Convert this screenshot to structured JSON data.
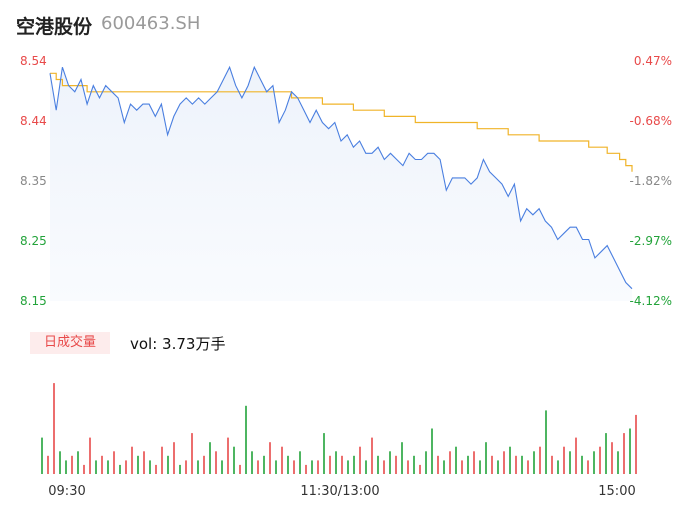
{
  "header": {
    "name": "空港股份",
    "code": "600463.SH"
  },
  "volume_badge": "日成交量",
  "volume_text": "vol: 3.73万手",
  "colors": {
    "up": "#e84a4a",
    "down": "#23a33a",
    "neutral": "#888888",
    "price_line": "#4a7fe0",
    "avg_line": "#f0b429"
  },
  "chart_data": [
    {
      "type": "line",
      "y_left_ticks": [
        "8.54",
        "8.44",
        "8.35",
        "8.25",
        "8.15"
      ],
      "y_right_ticks": [
        "0.47%",
        "-0.68%",
        "-1.82%",
        "-2.97%",
        "-4.12%"
      ],
      "ylim": [
        8.15,
        8.54
      ],
      "x_ticks": [
        "09:30",
        "11:30/13:00",
        "15:00"
      ],
      "series": [
        {
          "values": [
            8.52,
            8.46,
            8.53,
            8.5,
            8.49,
            8.51,
            8.47,
            8.5,
            8.48,
            8.5,
            8.49,
            8.48,
            8.44,
            8.47,
            8.46,
            8.47,
            8.47,
            8.45,
            8.47,
            8.42,
            8.45,
            8.47,
            8.48,
            8.47,
            8.48,
            8.47,
            8.48,
            8.49,
            8.51,
            8.53,
            8.5,
            8.48,
            8.5,
            8.53,
            8.51,
            8.49,
            8.5,
            8.44,
            8.46,
            8.49,
            8.48,
            8.46,
            8.44,
            8.46,
            8.44,
            8.43,
            8.44,
            8.41,
            8.42,
            8.4,
            8.41,
            8.39,
            8.39,
            8.4,
            8.38,
            8.39,
            8.38,
            8.37,
            8.39,
            8.38,
            8.38,
            8.39,
            8.39,
            8.38,
            8.33,
            8.35,
            8.35,
            8.35,
            8.34,
            8.35,
            8.38,
            8.36,
            8.35,
            8.34,
            8.32,
            8.34,
            8.28,
            8.3,
            8.29,
            8.3,
            8.28,
            8.27,
            8.25,
            8.26,
            8.27,
            8.27,
            8.25,
            8.25,
            8.22,
            8.23,
            8.24,
            8.22,
            8.2,
            8.18,
            8.17
          ]
        },
        {
          "values": [
            8.52,
            8.51,
            8.5,
            8.5,
            8.5,
            8.5,
            8.49,
            8.49,
            8.49,
            8.49,
            8.49,
            8.49,
            8.49,
            8.49,
            8.49,
            8.49,
            8.49,
            8.49,
            8.49,
            8.49,
            8.49,
            8.49,
            8.49,
            8.49,
            8.49,
            8.49,
            8.49,
            8.49,
            8.49,
            8.49,
            8.49,
            8.49,
            8.49,
            8.49,
            8.49,
            8.49,
            8.49,
            8.49,
            8.49,
            8.48,
            8.48,
            8.48,
            8.48,
            8.48,
            8.47,
            8.47,
            8.47,
            8.47,
            8.47,
            8.46,
            8.46,
            8.46,
            8.46,
            8.46,
            8.45,
            8.45,
            8.45,
            8.45,
            8.45,
            8.44,
            8.44,
            8.44,
            8.44,
            8.44,
            8.44,
            8.44,
            8.44,
            8.44,
            8.44,
            8.43,
            8.43,
            8.43,
            8.43,
            8.43,
            8.42,
            8.42,
            8.42,
            8.42,
            8.42,
            8.41,
            8.41,
            8.41,
            8.41,
            8.41,
            8.41,
            8.41,
            8.41,
            8.4,
            8.4,
            8.4,
            8.39,
            8.39,
            8.38,
            8.37,
            8.36
          ]
        }
      ]
    },
    {
      "type": "bar",
      "values": [
        8,
        4,
        20,
        5,
        3,
        4,
        5,
        2,
        8,
        3,
        4,
        3,
        5,
        2,
        3,
        6,
        4,
        5,
        3,
        2,
        6,
        4,
        7,
        2,
        3,
        9,
        3,
        4,
        7,
        5,
        3,
        8,
        6,
        2,
        15,
        5,
        3,
        4,
        7,
        3,
        6,
        4,
        3,
        5,
        2,
        3,
        3,
        9,
        4,
        5,
        4,
        3,
        4,
        6,
        3,
        8,
        4,
        3,
        5,
        4,
        7,
        3,
        4,
        2,
        5,
        10,
        4,
        3,
        5,
        6,
        3,
        4,
        5,
        3,
        7,
        4,
        3,
        5,
        6,
        4,
        4,
        3,
        5,
        6,
        14,
        4,
        3,
        6,
        5,
        8,
        4,
        3,
        5,
        6,
        9,
        7,
        5,
        9,
        10,
        13
      ],
      "directions": [
        "d",
        "u",
        "u",
        "d",
        "d",
        "u",
        "d",
        "u",
        "u",
        "d",
        "u",
        "d",
        "u",
        "d",
        "u",
        "u",
        "d",
        "u",
        "d",
        "u",
        "u",
        "d",
        "u",
        "d",
        "u",
        "u",
        "d",
        "u",
        "d",
        "u",
        "d",
        "u",
        "d",
        "u",
        "d",
        "d",
        "u",
        "d",
        "u",
        "d",
        "u",
        "d",
        "u",
        "d",
        "u",
        "d",
        "u",
        "d",
        "u",
        "d",
        "u",
        "d",
        "d",
        "u",
        "d",
        "u",
        "d",
        "u",
        "d",
        "u",
        "d",
        "u",
        "d",
        "u",
        "d",
        "d",
        "u",
        "d",
        "u",
        "d",
        "u",
        "d",
        "u",
        "d",
        "d",
        "u",
        "d",
        "u",
        "d",
        "u",
        "d",
        "u",
        "d",
        "u",
        "d",
        "u",
        "d",
        "u",
        "d",
        "u",
        "d",
        "u",
        "d",
        "u",
        "d",
        "u",
        "d",
        "u",
        "d",
        "u"
      ],
      "ylim": [
        0,
        22
      ]
    }
  ]
}
